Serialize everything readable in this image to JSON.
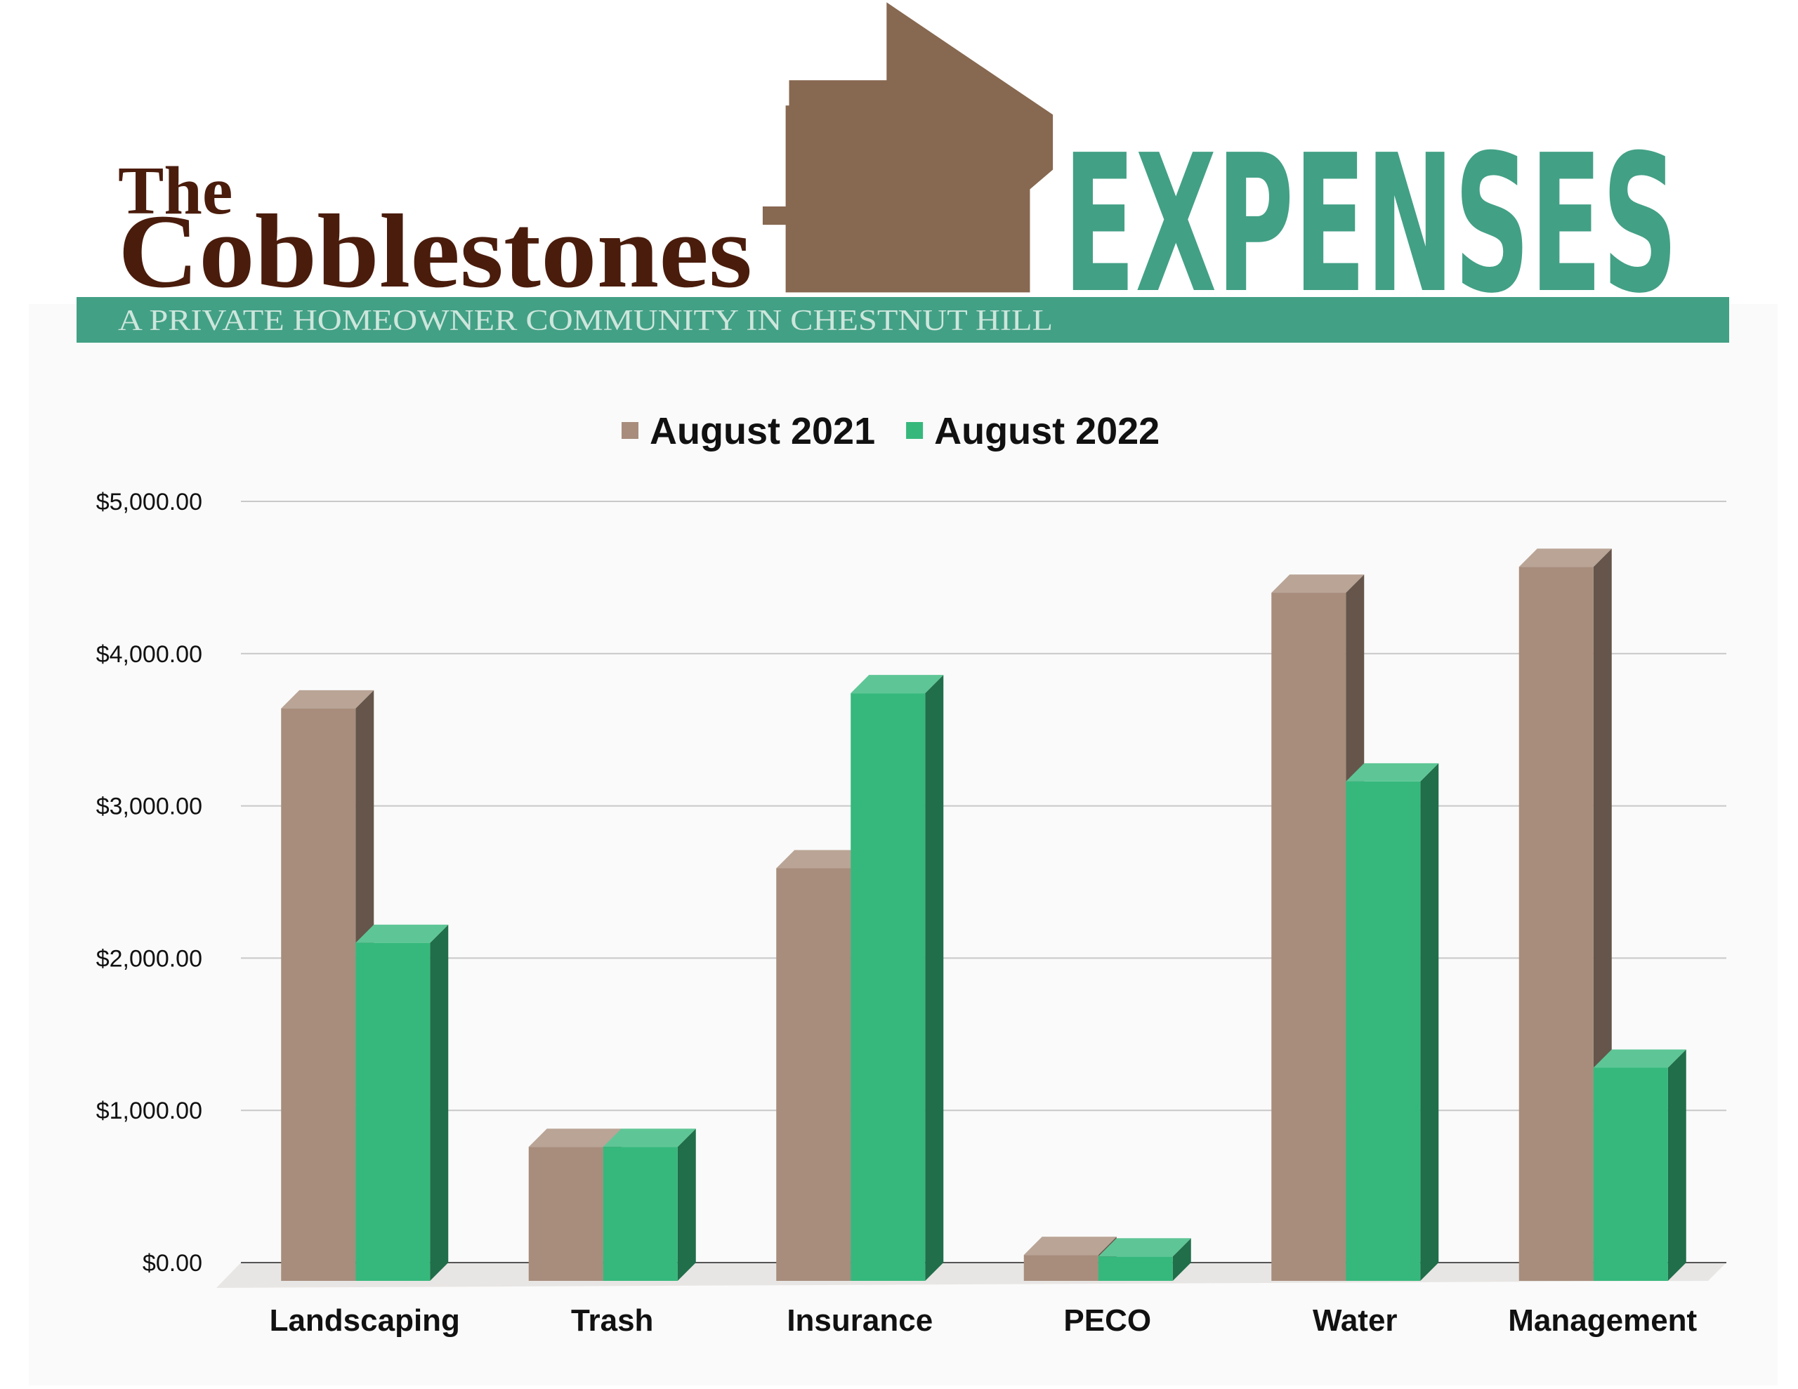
{
  "header": {
    "brand_small": "The",
    "brand": "Cobblestones",
    "heading": "EXPENSES",
    "tagline": "A PRIVATE HOMEOWNER COMMUNITY IN CHESTNUT HILL"
  },
  "chart_data": {
    "type": "bar",
    "categories": [
      "Landscaping",
      "Trash",
      "Insurance",
      "PECO",
      "Water",
      "Management"
    ],
    "series": [
      {
        "name": "August 2021",
        "color": "#a88d7c",
        "values": [
          3760,
          880,
          2710,
          170,
          4520,
          4690
        ]
      },
      {
        "name": "August 2022",
        "color": "#36b87c",
        "values": [
          2220,
          880,
          3860,
          160,
          3280,
          1400
        ]
      }
    ],
    "ylim": [
      0,
      5000
    ],
    "yticks": [
      {
        "value": 0,
        "label": "$0.00"
      },
      {
        "value": 1000,
        "label": "$1,000.00"
      },
      {
        "value": 2000,
        "label": "$2,000.00"
      },
      {
        "value": 3000,
        "label": "$3,000.00"
      },
      {
        "value": 4000,
        "label": "$4,000.00"
      },
      {
        "value": 5000,
        "label": "$5,000.00"
      }
    ],
    "grid": true,
    "legend": "top"
  }
}
